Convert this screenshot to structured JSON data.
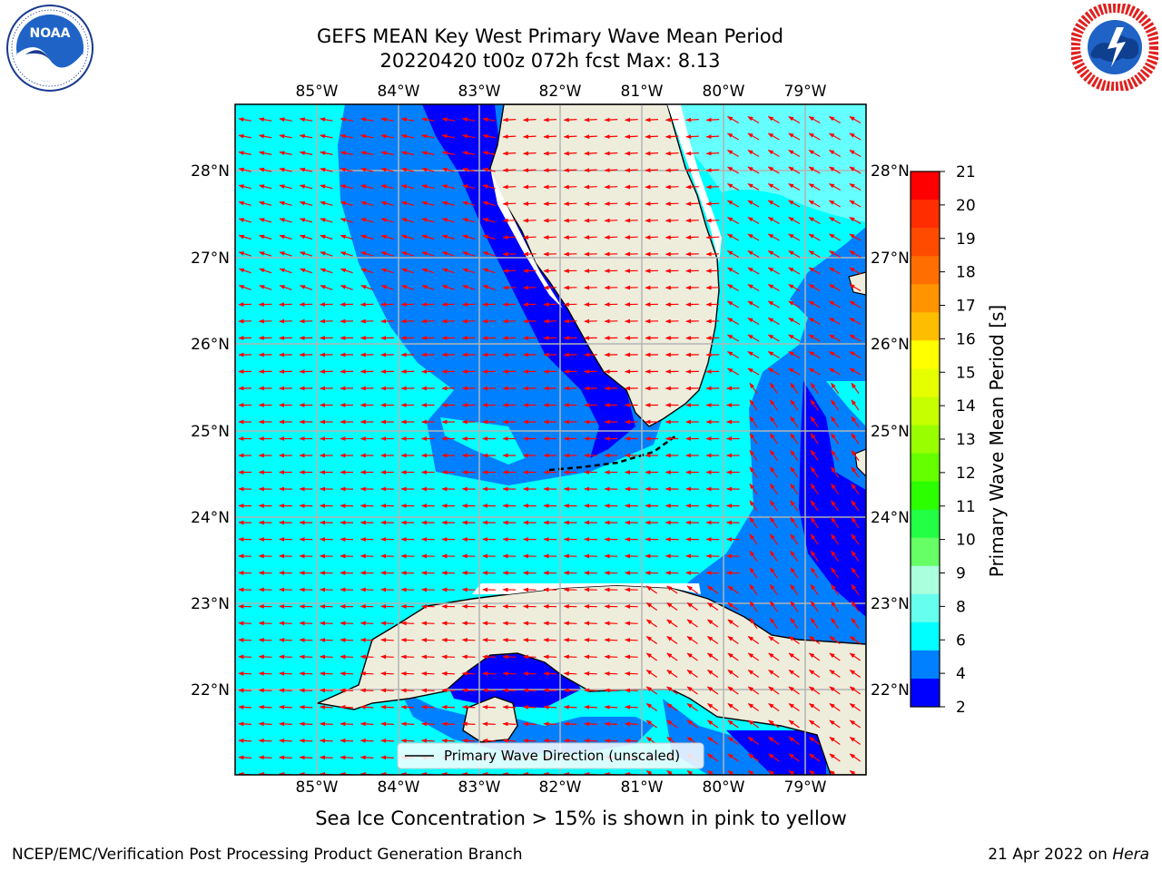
{
  "title": {
    "line1": "GEFS MEAN Key West Primary Wave Mean Period",
    "line2": "20220420 t00z 072h fcst   Max: 8.13"
  },
  "logos": {
    "left": {
      "icon": "noaa-logo",
      "text": "NOAA",
      "ring_text": "NATIONAL OCEANIC AND ATMOSPHERIC ADMINISTRATION · U.S. DEPARTMENT OF COMMERCE"
    },
    "right": {
      "icon": "nws-logo",
      "ring_text": "NATIONAL WEATHER SERVICE"
    }
  },
  "map": {
    "longitude_labels": [
      "85°W",
      "84°W",
      "83°W",
      "82°W",
      "81°W",
      "80°W",
      "79°W"
    ],
    "latitude_labels": [
      "28°N",
      "27°N",
      "26°N",
      "25°N",
      "24°N",
      "23°N",
      "22°N"
    ],
    "legend": "Primary Wave Direction (unscaled)",
    "colors": {
      "land": "#eeeddc",
      "grid": "#b3b3b3",
      "arrows": "#ff0000",
      "coast": "#000000"
    }
  },
  "colorbar": {
    "label": "Primary Wave Mean Period [s]",
    "ticks": [
      "21",
      "20",
      "19",
      "18",
      "17",
      "16",
      "15",
      "14",
      "13",
      "12",
      "11",
      "10",
      "9",
      "8",
      "6",
      "4",
      "2"
    ],
    "colors_top_to_bottom": [
      "#ff0000",
      "#ff2d00",
      "#ff4b00",
      "#ff6e00",
      "#ff9400",
      "#ffbd00",
      "#ffff00",
      "#e6ff00",
      "#c6ff00",
      "#99ff00",
      "#66ff00",
      "#2bff00",
      "#22ff44",
      "#66ff66",
      "#aaffdd",
      "#66ffee",
      "#00ffff",
      "#0080ff",
      "#0000ff"
    ]
  },
  "notes": {
    "sea_ice": "Sea Ice Concentration > 15% is shown in pink to yellow"
  },
  "footer": {
    "left": "NCEP/EMC/Verification Post Processing Product Generation Branch",
    "date": "21 Apr 2022 on",
    "machine": "Hera"
  }
}
